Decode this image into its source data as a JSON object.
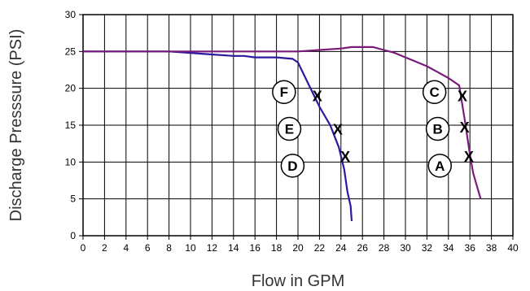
{
  "chart_data": {
    "type": "line",
    "xlabel": "Flow in GPM",
    "ylabel": "Discharge Presssure  (PSI)",
    "xlim": [
      0,
      40
    ],
    "ylim": [
      0,
      30
    ],
    "xticks": [
      0,
      2,
      4,
      6,
      8,
      10,
      12,
      14,
      16,
      18,
      20,
      22,
      24,
      26,
      28,
      30,
      32,
      34,
      36,
      38,
      40
    ],
    "yticks": [
      0,
      5,
      10,
      15,
      20,
      25,
      30
    ],
    "grid": true,
    "series": [
      {
        "color": "#2a1aa0",
        "x": [
          0,
          8,
          10,
          12,
          14,
          15,
          16,
          18,
          19.5,
          20,
          21,
          22,
          23,
          23.8,
          24.3,
          24.6,
          24.9,
          25
        ],
        "y": [
          25,
          25,
          24.8,
          24.6,
          24.4,
          24.4,
          24.2,
          24.2,
          24.0,
          23.5,
          20.5,
          17.5,
          15,
          12,
          9,
          6,
          4,
          2
        ]
      },
      {
        "color": "#7a1a7a",
        "x": [
          0,
          20,
          22,
          24,
          25,
          26,
          27,
          28,
          29,
          30,
          31,
          32,
          33,
          34,
          35,
          35.6,
          36,
          36.3,
          36.6,
          37
        ],
        "y": [
          25,
          25,
          25.2,
          25.4,
          25.6,
          25.6,
          25.6,
          25.2,
          24.8,
          24.2,
          23.6,
          23,
          22.2,
          21.4,
          20.4,
          15,
          11,
          8.5,
          7,
          5
        ]
      }
    ],
    "circle_labels": [
      {
        "text": "F",
        "x": 18.7,
        "y": 19.5
      },
      {
        "text": "E",
        "x": 19.2,
        "y": 14.5
      },
      {
        "text": "D",
        "x": 19.5,
        "y": 9.5
      },
      {
        "text": "C",
        "x": 32.7,
        "y": 19.5
      },
      {
        "text": "B",
        "x": 33.0,
        "y": 14.5
      },
      {
        "text": "A",
        "x": 33.2,
        "y": 9.5
      }
    ],
    "x_marks": [
      {
        "text": "X",
        "x": 21.8,
        "y": 19
      },
      {
        "text": "X",
        "x": 23.7,
        "y": 14.5
      },
      {
        "text": "X",
        "x": 24.4,
        "y": 10.8
      },
      {
        "text": "X",
        "x": 35.3,
        "y": 19
      },
      {
        "text": "X",
        "x": 35.5,
        "y": 14.8
      },
      {
        "text": "X",
        "x": 35.9,
        "y": 10.8
      }
    ]
  }
}
